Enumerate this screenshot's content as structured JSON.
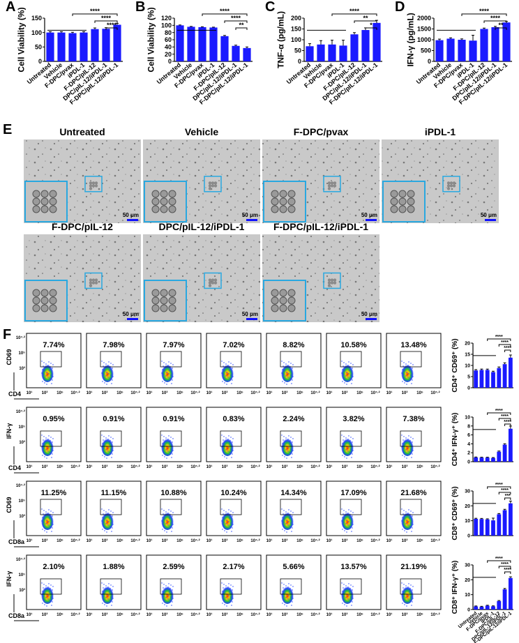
{
  "panel_letters": [
    "A",
    "B",
    "C",
    "D",
    "E",
    "F"
  ],
  "chart_data": [
    {
      "type": "bar",
      "ylabel": "Cell Viability (%)",
      "categories": [
        "Untreated",
        "Vehicle",
        "F-DPC/pvax",
        "iPDL-1",
        "F-DPC/pIL-12",
        "DPC/pIL-12/iPDL-1",
        "F-DPC/pIL-12/iPDL-1"
      ],
      "values": [
        100,
        100,
        98,
        100,
        112,
        113,
        127
      ],
      "errors": [
        3,
        3,
        3,
        3,
        4,
        4,
        5
      ],
      "ylim": [
        0,
        150
      ],
      "yticks": [
        0,
        50,
        100,
        150
      ],
      "color": "#1a1aff",
      "annotations": [
        "****",
        "****",
        "****"
      ]
    },
    {
      "type": "bar",
      "ylabel": "Cell Viability (%)",
      "categories": [
        "Untreated",
        "Vehicle",
        "F-DPC/pvax",
        "iPDL-1",
        "F-DPC/pIL-12",
        "DPC/pIL-12/iPDL-1",
        "F-DPC/pIL-12/iPDL-1"
      ],
      "values": [
        100,
        96,
        95,
        94,
        70,
        43,
        37
      ],
      "errors": [
        1,
        1,
        1,
        1,
        2,
        2,
        3
      ],
      "ylim": [
        0,
        120
      ],
      "yticks": [
        0,
        20,
        40,
        60,
        80,
        100,
        120
      ],
      "color": "#1a1aff",
      "annotations": [
        "****",
        "****",
        "**"
      ]
    },
    {
      "type": "bar",
      "ylabel": "TNF-α (pg/mL)",
      "categories": [
        "Untreated",
        "Vehicle",
        "F-DPC/pvax",
        "iPDL-1",
        "F-DPC/pIL-12",
        "DPC/pIL-12/iPDL-1",
        "F-DPC/pIL-12/iPDL-1"
      ],
      "values": [
        70,
        78,
        78,
        73,
        125,
        145,
        178
      ],
      "errors": [
        12,
        18,
        20,
        25,
        8,
        10,
        12
      ],
      "ylim": [
        0,
        200
      ],
      "yticks": [
        0,
        50,
        100,
        150,
        200
      ],
      "color": "#1a1aff",
      "annotations": [
        "****",
        "**",
        "*"
      ]
    },
    {
      "type": "bar",
      "ylabel": "IFN-γ (pg/mL)",
      "categories": [
        "Untreated",
        "Vehicle",
        "F-DPC/pvax",
        "iPDL-1",
        "F-DPC/pIL-12",
        "DPC/pIL-12/iPDL-1",
        "F-DPC/pIL-12/iPDL-1"
      ],
      "values": [
        980,
        1050,
        1000,
        960,
        1500,
        1580,
        1800
      ],
      "errors": [
        50,
        40,
        40,
        250,
        40,
        40,
        50
      ],
      "ylim": [
        0,
        2000
      ],
      "yticks": [
        0,
        500,
        1000,
        1500,
        2000
      ],
      "color": "#1a1aff",
      "annotations": [
        "****",
        "****",
        "**"
      ]
    },
    {
      "type": "bar",
      "ylabel": "CD4⁺ CD69⁺ (%)",
      "categories": [
        null,
        null,
        null,
        null,
        null,
        null,
        null
      ],
      "values": [
        7.74,
        7.98,
        7.97,
        7.02,
        8.82,
        10.58,
        13.48
      ],
      "errors": [
        0.4,
        0.4,
        0.4,
        0.4,
        0.5,
        0.6,
        1.2
      ],
      "ylim": [
        0,
        20
      ],
      "yticks": [
        0,
        5,
        10,
        15,
        20
      ],
      "color": "#1a1aff",
      "annotations": [
        "****",
        "****",
        "****"
      ]
    },
    {
      "type": "bar",
      "ylabel": "CD4⁺ IFN-γ⁺ (%)",
      "categories": [
        null,
        null,
        null,
        null,
        null,
        null,
        null
      ],
      "values": [
        0.95,
        0.91,
        0.91,
        0.83,
        2.24,
        3.82,
        7.38
      ],
      "errors": [
        0.1,
        0.1,
        0.1,
        0.1,
        0.15,
        0.2,
        0.6
      ],
      "ylim": [
        0,
        10
      ],
      "yticks": [
        0,
        2,
        4,
        6,
        8,
        10
      ],
      "color": "#1a1aff",
      "annotations": [
        "****",
        "****",
        "****"
      ]
    },
    {
      "type": "bar",
      "ylabel": "CD8⁺ CD69⁺ (%)",
      "categories": [
        null,
        null,
        null,
        null,
        null,
        null,
        null
      ],
      "values": [
        11.25,
        11.15,
        10.88,
        10.24,
        14.34,
        17.09,
        21.68
      ],
      "errors": [
        0.4,
        0.4,
        0.4,
        1.5,
        0.5,
        0.6,
        1.5
      ],
      "ylim": [
        0,
        30
      ],
      "yticks": [
        0,
        10,
        20,
        30
      ],
      "color": "#1a1aff",
      "annotations": [
        "****",
        "****",
        "***"
      ]
    },
    {
      "type": "bar",
      "ylabel": "CD8⁺ IFN-γ⁺ (%)",
      "categories": [
        "Untreated",
        "Vehicle",
        "F-DPC/pvax",
        "iPDL-1",
        "F-DPC/pIL-12",
        "DPC/pIL-12/iPDL-1",
        "F-DPC/pIL-12/iPDL-1"
      ],
      "values": [
        2.1,
        1.88,
        2.59,
        2.17,
        5.66,
        13.57,
        21.19
      ],
      "errors": [
        0.3,
        0.3,
        0.3,
        0.3,
        0.4,
        0.6,
        0.8
      ],
      "ylim": [
        0,
        30
      ],
      "yticks": [
        0,
        10,
        20,
        30
      ],
      "color": "#1a1aff",
      "annotations": [
        "****",
        "****",
        "****"
      ]
    }
  ],
  "micrographs": {
    "labels": [
      "Untreated",
      "Vehicle",
      "F-DPC/pvax",
      "iPDL-1",
      "F-DPC/pIL-12",
      "DPC/pIL-12/iPDL-1",
      "F-DPC/pIL-12/iPDL-1"
    ],
    "scale_bar": "50 μm"
  },
  "flow": {
    "y_labels": [
      "CD69",
      "IFN-γ",
      "CD69",
      "IFN-γ"
    ],
    "x_labels": [
      "CD4",
      "CD4",
      "CD8a",
      "CD8a"
    ],
    "tick_labels": [
      "10¹",
      "10³",
      "10⁵",
      "10⁷·²"
    ],
    "percents": [
      [
        "7.74%",
        "7.98%",
        "7.97%",
        "7.02%",
        "8.82%",
        "10.58%",
        "13.48%"
      ],
      [
        "0.95%",
        "0.91%",
        "0.91%",
        "0.83%",
        "2.24%",
        "3.82%",
        "7.38%"
      ],
      [
        "11.25%",
        "11.15%",
        "10.88%",
        "10.24%",
        "14.34%",
        "17.09%",
        "21.68%"
      ],
      [
        "2.10%",
        "1.88%",
        "2.59%",
        "2.17%",
        "5.66%",
        "13.57%",
        "21.19%"
      ]
    ]
  }
}
